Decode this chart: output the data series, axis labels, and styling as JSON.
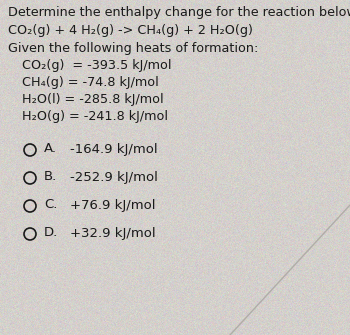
{
  "title": "Determine the enthalpy change for the reaction below:",
  "reaction": "CO₂(g) + 4 H₂(g) -> CH₄(g) + 2 H₂O(g)",
  "given_header": "Given the following heats of formation:",
  "formations": [
    "CO₂(g)  = -393.5 kJ/mol",
    "CH₄(g) = -74.8 kJ/mol",
    "H₂O(l) = -285.8 kJ/mol",
    "H₂O(g) = -241.8 kJ/mol"
  ],
  "choice_labels": [
    "A.",
    "B.",
    "C.",
    "D."
  ],
  "choice_values": [
    "-164.9 kJ/mol",
    "-252.9 kJ/mol",
    "+76.9 kJ/mol",
    "+32.9 kJ/mol"
  ],
  "bg_color": "#d4d0cc",
  "text_color": "#1a1a1a",
  "title_fontsize": 9.2,
  "body_fontsize": 9.2,
  "choice_fontsize": 9.5
}
